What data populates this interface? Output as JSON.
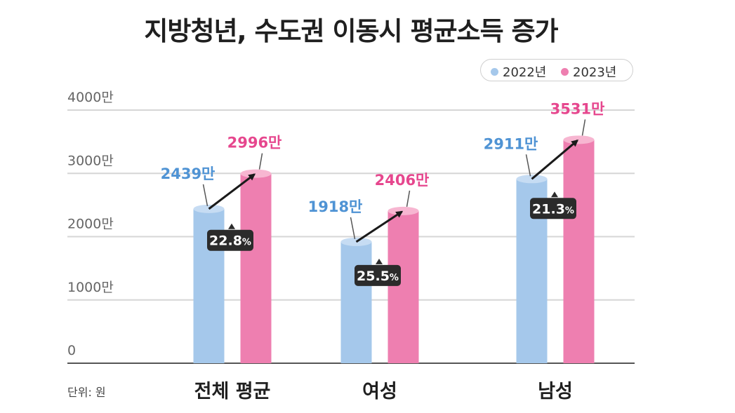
{
  "title": "지방청년, 수도권 이동시 평균소득 증가",
  "unit_label": "단위: 원",
  "colors": {
    "y2022": "#a5c8eb",
    "y2022_top": "#c6dcf3",
    "y2022_label": "#4f93d4",
    "y2023": "#ee7fb0",
    "y2023_top": "#f7b6d1",
    "y2023_label": "#e6478e",
    "grid": "#d6d6d6",
    "axis": "#555555",
    "badge": "#2b2b2b"
  },
  "chart_data": {
    "type": "bar",
    "title": "지방청년, 수도권 이동시 평균소득 증가",
    "xlabel": "",
    "ylabel": "",
    "unit": "원",
    "categories": [
      "전체 평균",
      "여성",
      "남성"
    ],
    "series": [
      {
        "name": "2022년",
        "values": [
          2439,
          1918,
          2911
        ],
        "labels": [
          "2439만",
          "1918만",
          "2911만"
        ]
      },
      {
        "name": "2023년",
        "values": [
          2996,
          2406,
          3531
        ],
        "labels": [
          "2996만",
          "2406만",
          "3531만"
        ]
      }
    ],
    "growth": [
      {
        "value": "22.8",
        "unit": "%"
      },
      {
        "value": "25.5",
        "unit": "%"
      },
      {
        "value": "21.3",
        "unit": "%"
      }
    ],
    "yticks": [
      0,
      1000,
      2000,
      3000,
      4000
    ],
    "ytick_labels": [
      "0",
      "1000만",
      "2000만",
      "3000만",
      "4000만"
    ],
    "ylim": [
      0,
      4000
    ],
    "legend_position": "top-right"
  }
}
